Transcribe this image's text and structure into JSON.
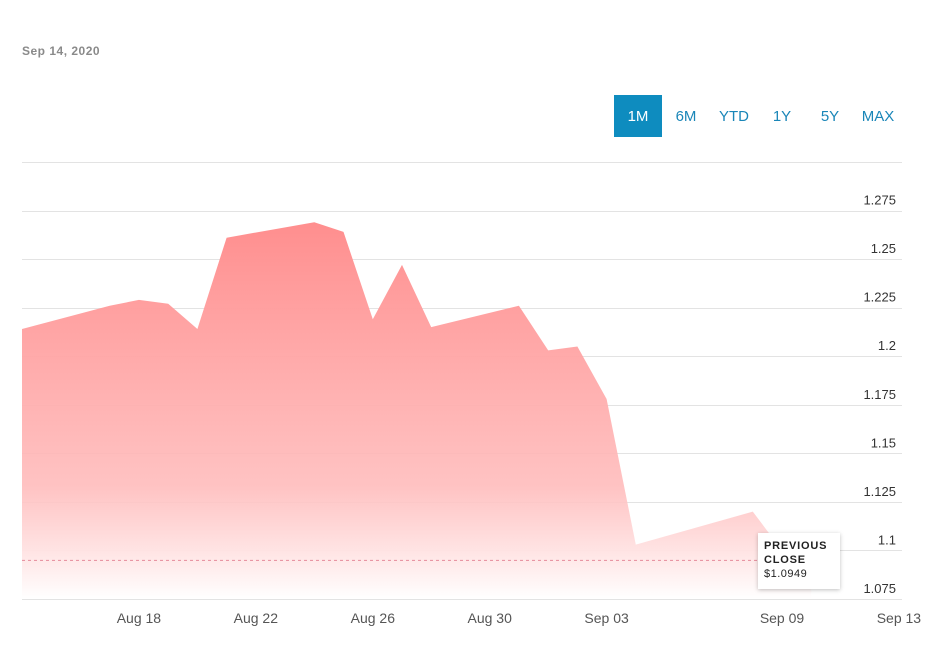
{
  "header": {
    "date": "Sep 14, 2020"
  },
  "range_selector": {
    "options": [
      "1M",
      "6M",
      "YTD",
      "1Y",
      "5Y",
      "MAX"
    ],
    "selected": "1M"
  },
  "colors": {
    "area_top": "#ff8e8e",
    "area_bottom": "#ffffff",
    "accent": "#0e8cbf",
    "previous_close_line": "#e58a9a"
  },
  "tooltip": {
    "label": "PREVIOUS CLOSE",
    "value": "$1.0949"
  },
  "chart_data": {
    "type": "area",
    "x_tick_labels": [
      "Aug 18",
      "Aug 22",
      "Aug 26",
      "Aug 30",
      "Sep 03",
      "Sep 09",
      "Sep 13"
    ],
    "y_tick_labels": [
      "1.275",
      "1.25",
      "1.225",
      "1.2",
      "1.175",
      "1.15",
      "1.125",
      "1.1",
      "1.075"
    ],
    "y_ticks": [
      1.275,
      1.25,
      1.225,
      1.2,
      1.175,
      1.15,
      1.125,
      1.1,
      1.075
    ],
    "ylim": [
      1.075,
      1.3
    ],
    "grid": true,
    "previous_close": 1.0949,
    "series": [
      {
        "x": [
          "Aug 14",
          "Aug 17",
          "Aug 18",
          "Aug 19",
          "Aug 20",
          "Aug 21",
          "Aug 24",
          "Aug 25",
          "Aug 26",
          "Aug 27",
          "Aug 28",
          "Aug 31",
          "Sep 01",
          "Sep 02",
          "Sep 03",
          "Sep 04",
          "Sep 08",
          "Sep 09",
          "Sep 10"
        ],
        "values": [
          1.214,
          1.226,
          1.229,
          1.227,
          1.214,
          1.261,
          1.269,
          1.264,
          1.219,
          1.247,
          1.215,
          1.226,
          1.203,
          1.205,
          1.178,
          1.103,
          1.12,
          1.1,
          1.094
        ]
      }
    ]
  }
}
